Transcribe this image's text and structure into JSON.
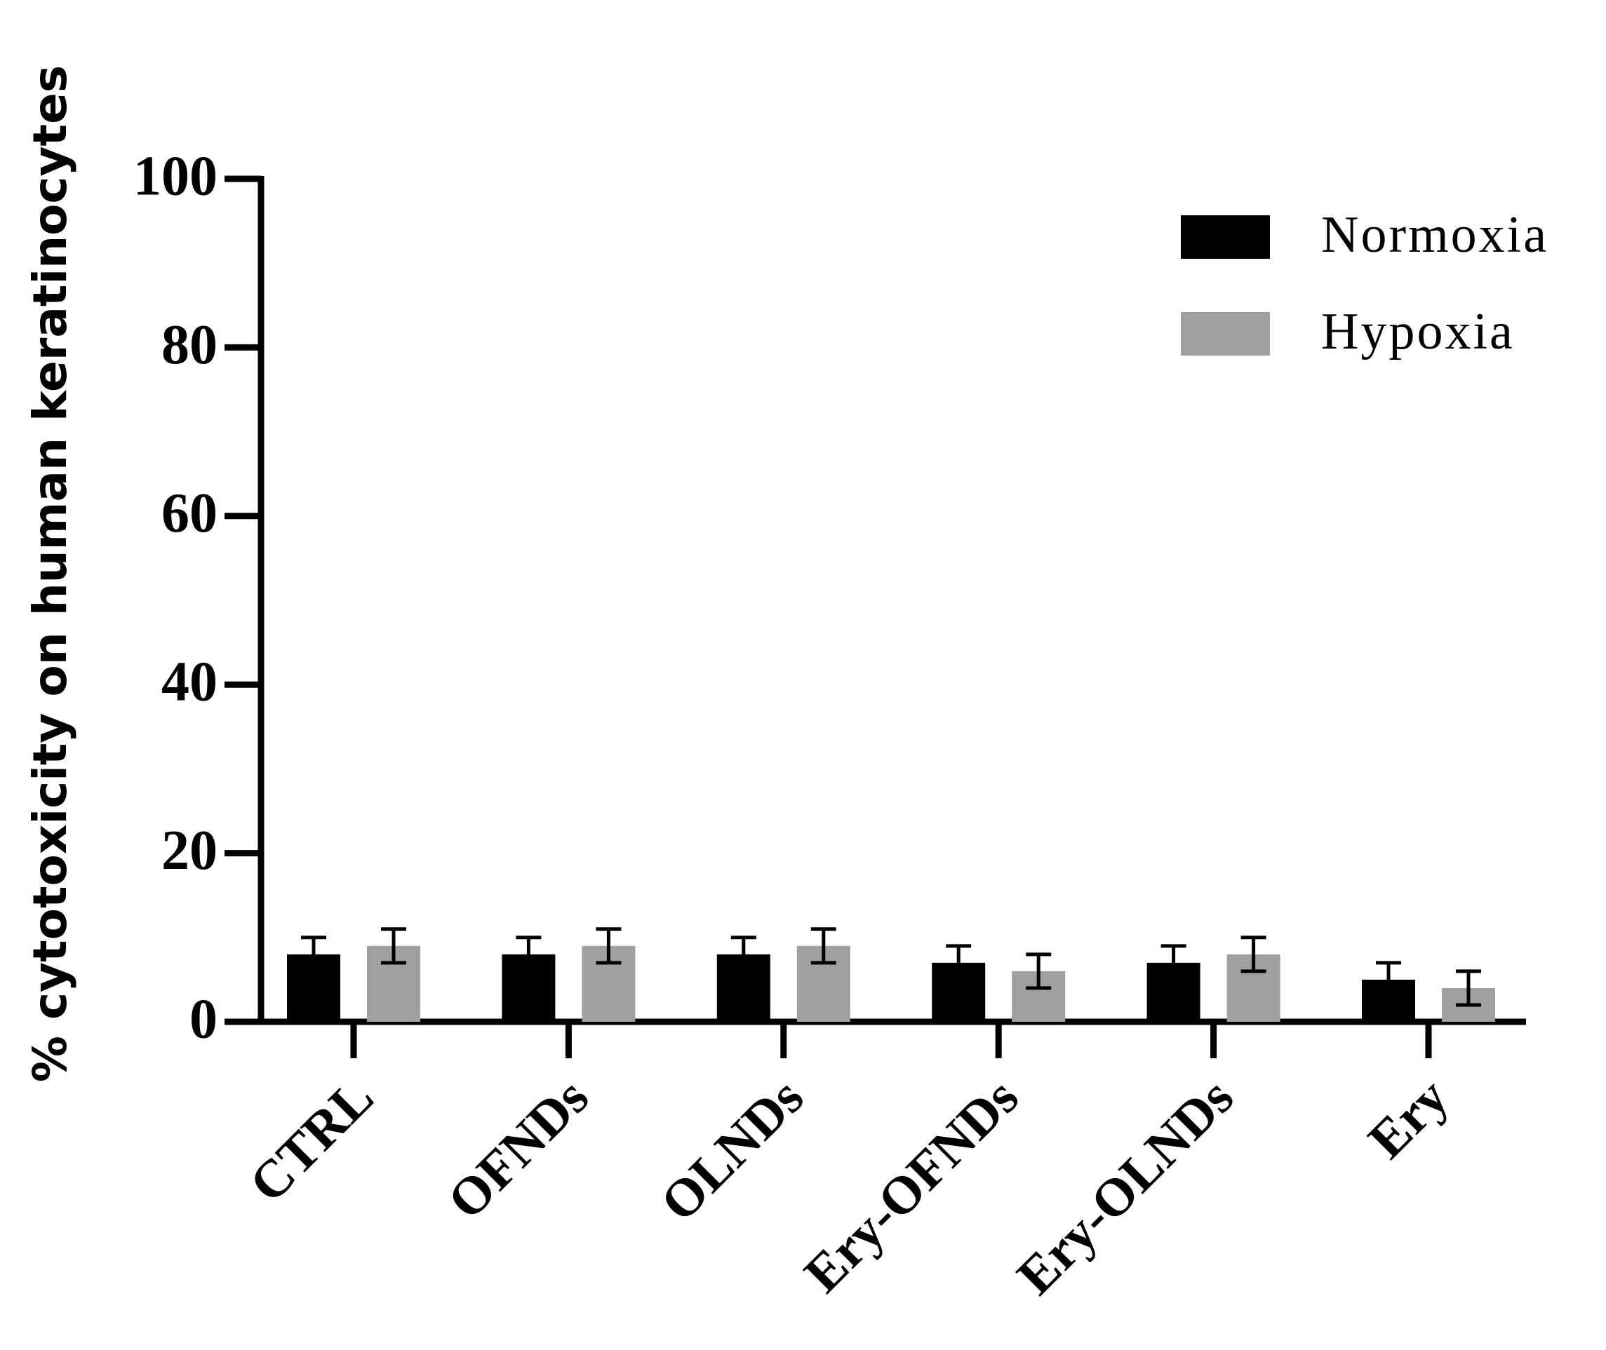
{
  "chart_data": {
    "type": "bar",
    "y_label": "% cytotoxicity on human keratinocytes",
    "categories": [
      "CTRL",
      "OFNDs",
      "OLNDs",
      "Ery-OFNDs",
      "Ery-OLNDs",
      "Ery"
    ],
    "series": [
      {
        "name": "Normoxia",
        "color": "#000000",
        "values": [
          8,
          8,
          8,
          7,
          7,
          5
        ],
        "errors": [
          2,
          2,
          2,
          2,
          2,
          2
        ]
      },
      {
        "name": "Hypoxia",
        "color": "#a0a0a2",
        "values": [
          9,
          9,
          9,
          6,
          8,
          4
        ],
        "errors": [
          2,
          2,
          2,
          2,
          2,
          2
        ]
      }
    ],
    "ylim": [
      0,
      100
    ],
    "yticks": [
      0,
      20,
      40,
      60,
      80,
      100
    ],
    "legend": "upper right"
  }
}
